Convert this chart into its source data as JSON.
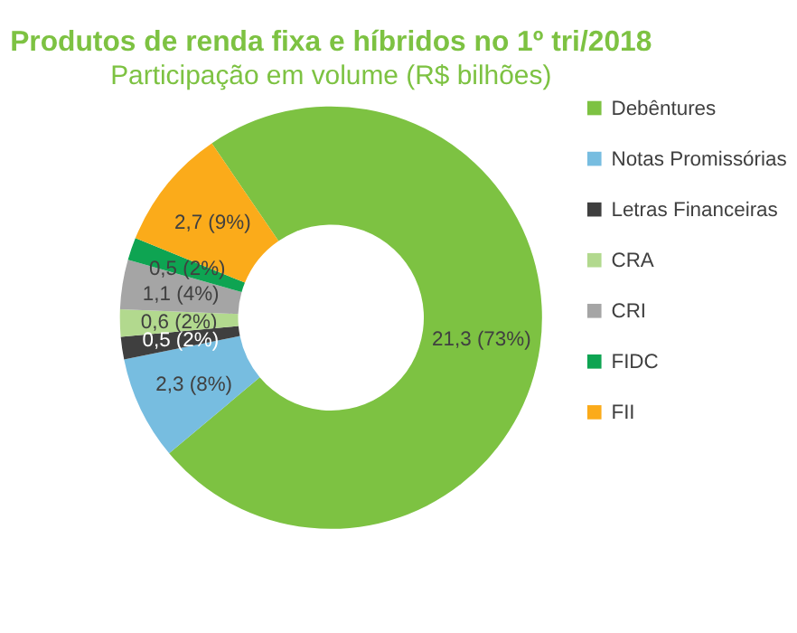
{
  "chart_data": {
    "type": "donut",
    "title": "Produtos de renda fixa e híbridos no 1º tri/2018",
    "subtitle": "Participação em volume (R$ bilhões)",
    "categories": [
      "Debêntures",
      "Notas Promissórias",
      "Letras Financeiras",
      "CRA",
      "CRI",
      "FIDC",
      "FII"
    ],
    "values": [
      21.3,
      2.3,
      0.5,
      0.6,
      1.1,
      0.5,
      2.7
    ],
    "colors": [
      "#7dc242",
      "#77bde0",
      "#3f3f3f",
      "#b2d98e",
      "#a5a5a5",
      "#0ea452",
      "#fbab1a"
    ],
    "value_labels": [
      "21,3 (73%)",
      "2,3 (8%)",
      "0,5 (2%)",
      "0,6 (2%)",
      "1,1 (4%)",
      "0,5 (2%)",
      "2,7 (9%)"
    ],
    "legend": "right"
  }
}
